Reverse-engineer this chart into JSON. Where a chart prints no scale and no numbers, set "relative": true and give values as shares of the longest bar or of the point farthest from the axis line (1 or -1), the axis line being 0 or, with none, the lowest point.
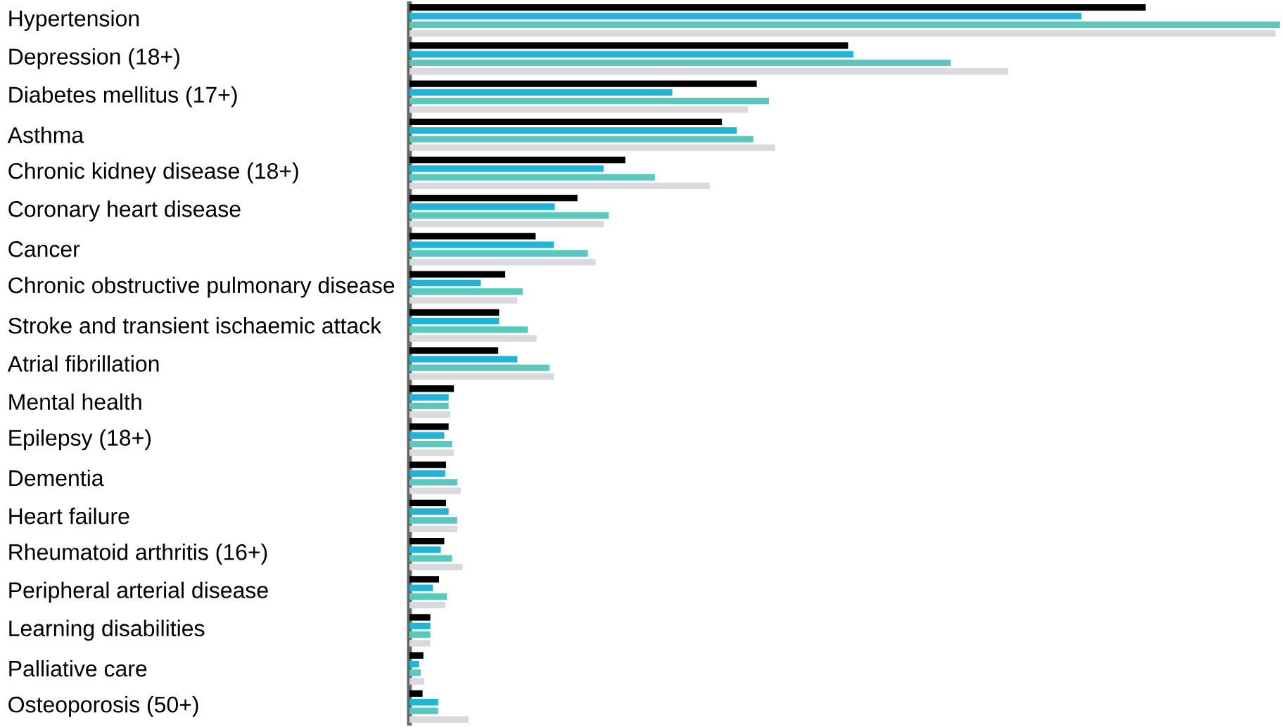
{
  "chart_data": {
    "type": "bar",
    "orientation": "horizontal",
    "relative": true,
    "categories": [
      "Hypertension",
      "Depression (18+)",
      "Diabetes mellitus (17+)",
      "Asthma",
      "Chronic kidney disease (18+)",
      "Coronary heart disease",
      "Cancer",
      "Chronic obstructive pulmonary disease",
      "Stroke and transient ischaemic attack",
      "Atrial fibrillation",
      "Mental health",
      "Epilepsy (18+)",
      "Dementia",
      "Heart failure",
      "Rheumatoid arthritis (16+)",
      "Peripheral arterial disease",
      "Learning disabilities",
      "Palliative care",
      "Osteoporosis (50+)"
    ],
    "series": [
      {
        "color": "#d9d9de",
        "values": [
          0.995,
          0.688,
          0.389,
          0.42,
          0.345,
          0.223,
          0.214,
          0.124,
          0.146,
          0.166,
          0.047,
          0.051,
          0.059,
          0.055,
          0.061,
          0.041,
          0.024,
          0.017,
          0.068
        ]
      },
      {
        "color": "#5bc8c0",
        "values": [
          1,
          0.622,
          0.413,
          0.395,
          0.282,
          0.229,
          0.205,
          0.13,
          0.136,
          0.161,
          0.045,
          0.049,
          0.055,
          0.055,
          0.049,
          0.043,
          0.024,
          0.013,
          0.033
        ]
      },
      {
        "color": "#1fb4d8",
        "values": [
          0.772,
          0.51,
          0.302,
          0.376,
          0.223,
          0.167,
          0.166,
          0.082,
          0.103,
          0.124,
          0.045,
          0.04,
          0.041,
          0.045,
          0.036,
          0.027,
          0.024,
          0.011,
          0.033
        ]
      },
      {
        "color": "#000000",
        "values": [
          0.846,
          0.504,
          0.399,
          0.359,
          0.248,
          0.193,
          0.145,
          0.11,
          0.103,
          0.102,
          0.051,
          0.045,
          0.042,
          0.042,
          0.04,
          0.034,
          0.024,
          0.016,
          0.015
        ]
      }
    ]
  }
}
